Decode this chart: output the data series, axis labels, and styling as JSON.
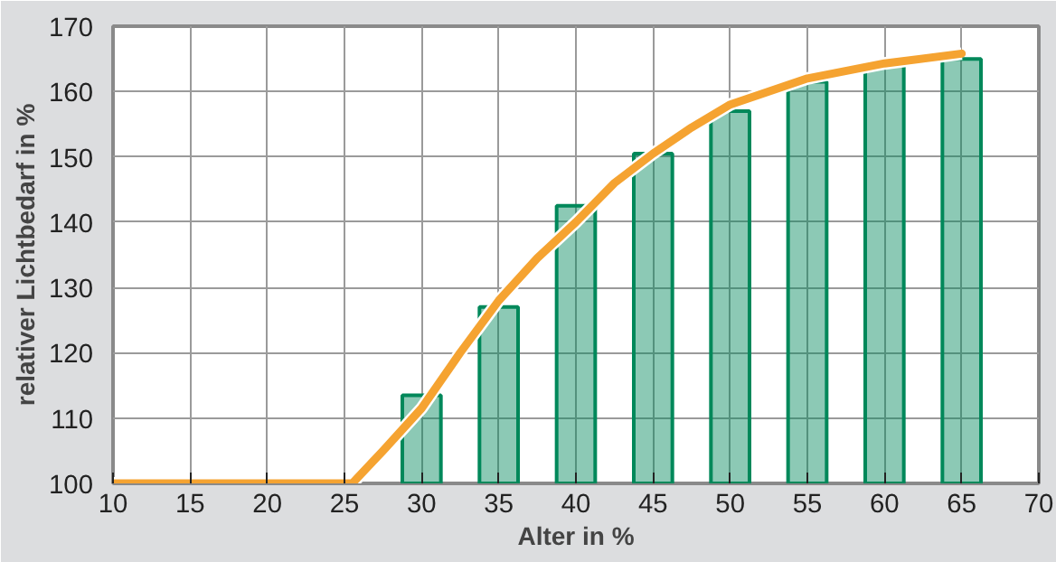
{
  "chart_data": {
    "type": "bar",
    "xlabel": "Alter in %",
    "ylabel": "relativer Lichtbedarf in %",
    "x": [
      30,
      35,
      40,
      45,
      50,
      55,
      60,
      65
    ],
    "series": [
      {
        "color": "#00885a",
        "values": [
          113.5,
          127,
          142.5,
          150.5,
          157,
          161.5,
          164,
          165
        ]
      },
      {
        "type": "line",
        "color": "#f5a331",
        "x": [
          10,
          25.5,
          27.5,
          30,
          32.5,
          35,
          37.5,
          40,
          42.5,
          45,
          47.5,
          50,
          55,
          60,
          65
        ],
        "values": [
          100,
          100,
          105,
          111.5,
          120,
          128,
          134.5,
          140,
          146,
          150.5,
          154.5,
          158,
          162,
          164.3,
          165.8
        ]
      }
    ],
    "xlim": [
      10,
      70
    ],
    "ylim": [
      100,
      170
    ],
    "xticks": [
      10,
      15,
      20,
      25,
      30,
      35,
      40,
      45,
      50,
      55,
      60,
      65,
      70
    ],
    "yticks": [
      100,
      110,
      120,
      130,
      140,
      150,
      160,
      170
    ],
    "grid": true
  }
}
